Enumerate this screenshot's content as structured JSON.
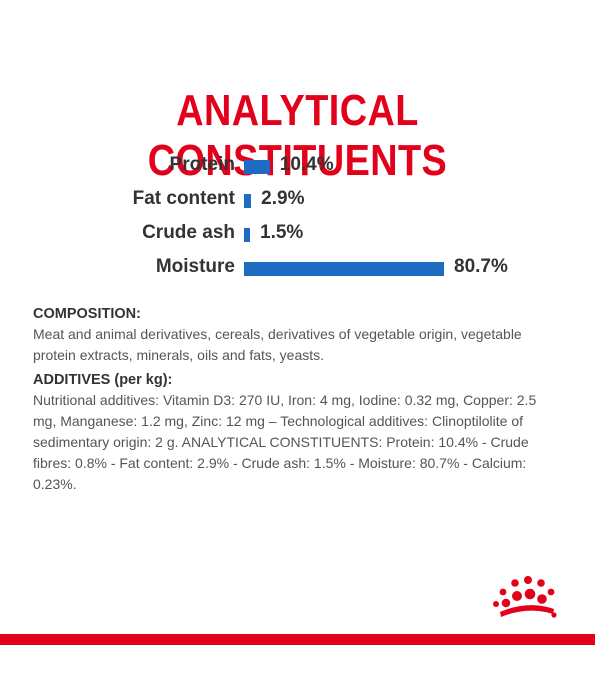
{
  "title": "ANALYTICAL CONSTITUENTS",
  "chart_data": {
    "type": "bar",
    "orientation": "horizontal",
    "categories": [
      "Protein",
      "Fat content",
      "Crude ash",
      "Moisture"
    ],
    "values": [
      10.4,
      2.9,
      1.5,
      80.7
    ],
    "value_labels": [
      "10.4%",
      "2.9%",
      "1.5%",
      "80.7%"
    ],
    "bar_color": "#1f6ac2",
    "title": "",
    "xlabel": "",
    "ylabel": ""
  },
  "composition": {
    "heading": "COMPOSITION:",
    "text": "Meat and animal derivatives, cereals, derivatives of vegetable origin, vegetable protein extracts, minerals, oils and fats, yeasts."
  },
  "additives": {
    "heading": "ADDITIVES (per kg):",
    "text": "Nutritional additives: Vitamin D3: 270 IU, Iron: 4 mg, Iodine: 0.32 mg, Copper: 2.5 mg, Manganese: 1.2 mg, Zinc: 12 mg – Technological additives: Clinoptilolite of sedimentary origin: 2 g. ANALYTICAL CONSTITUENTS: Protein: 10.4% - Crude fibres: 0.8% - Fat content: 2.9% - Crude ash: 1.5% - Moisture: 80.7% - Calcium: 0.23%."
  },
  "logo": {
    "icon": "crown-logo-icon",
    "color": "#e3001b"
  },
  "accent_color": "#e3001b"
}
